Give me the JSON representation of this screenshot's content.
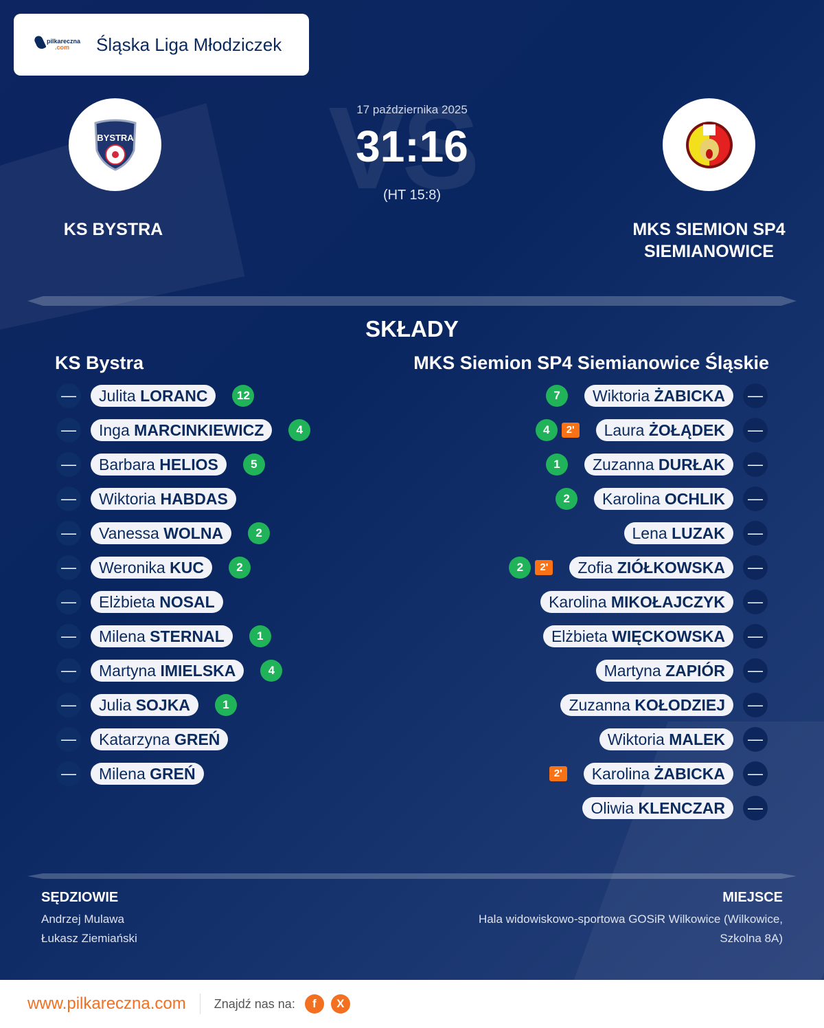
{
  "league": {
    "logo_text": "pilkareczna",
    "logo_suffix": ".com",
    "title": "Śląska Liga Młodziczek"
  },
  "match": {
    "date": "17 października 2025",
    "score": "31:16",
    "halftime": "(HT 15:8)",
    "vs": "VS"
  },
  "home": {
    "name": "KS BYSTRA",
    "crest": "KS Bystra crest",
    "lineup_title": "KS Bystra",
    "players": [
      {
        "first": "Julita",
        "last": "LORANC",
        "goals": "12"
      },
      {
        "first": "Inga",
        "last": "MARCINKIEWICZ",
        "goals": "4"
      },
      {
        "first": "Barbara",
        "last": "HELIOS",
        "goals": "5"
      },
      {
        "first": "Wiktoria",
        "last": "HABDAS"
      },
      {
        "first": "Vanessa",
        "last": "WOLNA",
        "goals": "2"
      },
      {
        "first": "Weronika",
        "last": "KUC",
        "goals": "2"
      },
      {
        "first": "Elżbieta",
        "last": "NOSAL"
      },
      {
        "first": "Milena",
        "last": "STERNAL",
        "goals": "1"
      },
      {
        "first": "Martyna",
        "last": "IMIELSKA",
        "goals": "4"
      },
      {
        "first": "Julia",
        "last": "SOJKA",
        "goals": "1"
      },
      {
        "first": "Katarzyna",
        "last": "GREŃ"
      },
      {
        "first": "Milena",
        "last": "GREŃ"
      }
    ]
  },
  "away": {
    "name_line1": "MKS SIEMION SP4",
    "name_line2": "SIEMIANOWICE",
    "crest": "MKS Siemion crest",
    "lineup_title": "MKS Siemion SP4 Siemianowice Śląskie",
    "players": [
      {
        "first": "Wiktoria",
        "last": "ŻABICKA",
        "goals": "7"
      },
      {
        "first": "Laura",
        "last": "ŻOŁĄDEK",
        "goals": "4",
        "penalty": "2'"
      },
      {
        "first": "Zuzanna",
        "last": "DURŁAK",
        "goals": "1"
      },
      {
        "first": "Karolina",
        "last": "OCHLIK",
        "goals": "2"
      },
      {
        "first": "Lena",
        "last": "LUZAK"
      },
      {
        "first": "Zofia",
        "last": "ZIÓŁKOWSKA",
        "goals": "2",
        "penalty": "2'"
      },
      {
        "first": "Karolina",
        "last": "MIKOŁAJCZYK"
      },
      {
        "first": "Elżbieta",
        "last": "WIĘCKOWSKA"
      },
      {
        "first": "Martyna",
        "last": "ZAPIÓR"
      },
      {
        "first": "Zuzanna",
        "last": "KOŁODZIEJ"
      },
      {
        "first": "Wiktoria",
        "last": "MALEK"
      },
      {
        "first": "Karolina",
        "last": "ŻABICKA",
        "penalty": "2'"
      },
      {
        "first": "Oliwia",
        "last": "KLENCZAR"
      }
    ]
  },
  "position_placeholder": "—",
  "lineups_title": "SKŁADY",
  "referees": {
    "title": "SĘDZIOWIE",
    "names": [
      "Andrzej Mulawa",
      "Łukasz Ziemiański"
    ]
  },
  "venue": {
    "title": "MIEJSCE",
    "line1": "Hala widowiskowo-sportowa GOSiR Wilkowice (Wilkowice,",
    "line2": "Szkolna 8A)"
  },
  "footer": {
    "site": "www.pilkareczna.com",
    "find_us": "Znajdź nas na:",
    "social": [
      {
        "icon": "facebook-icon",
        "label": "f"
      },
      {
        "icon": "x-icon",
        "label": "X"
      }
    ]
  },
  "colors": {
    "background": "#0a2660",
    "goal": "#21b35a",
    "penalty": "#f97316",
    "accent": "#f37021"
  }
}
